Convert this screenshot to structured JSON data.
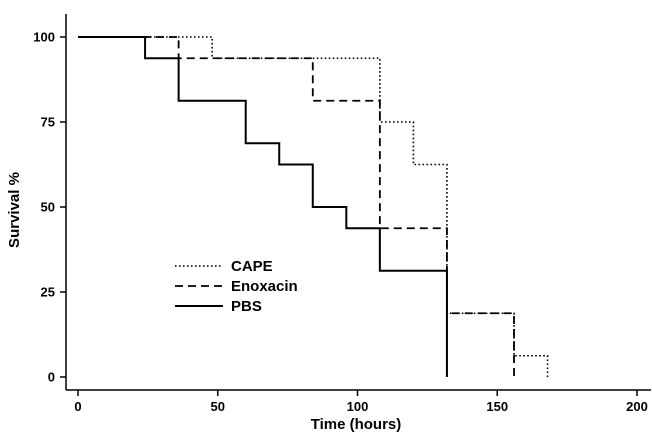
{
  "chart_data": {
    "type": "line",
    "step": true,
    "xlabel": "Time (hours)",
    "ylabel": "Survival %",
    "xlim": [
      0,
      200
    ],
    "ylim": [
      0,
      100
    ],
    "xticks": [
      0,
      50,
      100,
      150,
      200
    ],
    "yticks": [
      0,
      25,
      50,
      75,
      100
    ],
    "grid": false,
    "legend": "middle-left",
    "series": [
      {
        "name": "CAPE",
        "dash": "dotted",
        "x": [
          0,
          36,
          48,
          108,
          120,
          132,
          156,
          168
        ],
        "y": [
          100,
          100,
          93.75,
          75,
          62.5,
          18.75,
          6.25,
          0
        ]
      },
      {
        "name": "Enoxacin",
        "dash": "dashed",
        "x": [
          0,
          36,
          84,
          108,
          132,
          156
        ],
        "y": [
          100,
          93.75,
          81.25,
          43.75,
          18.75,
          0
        ]
      },
      {
        "name": "PBS",
        "dash": "solid",
        "x": [
          0,
          24,
          36,
          60,
          72,
          84,
          96,
          108,
          132
        ],
        "y": [
          100,
          93.75,
          81.25,
          68.75,
          62.5,
          50,
          43.75,
          31.25,
          0
        ]
      }
    ]
  }
}
